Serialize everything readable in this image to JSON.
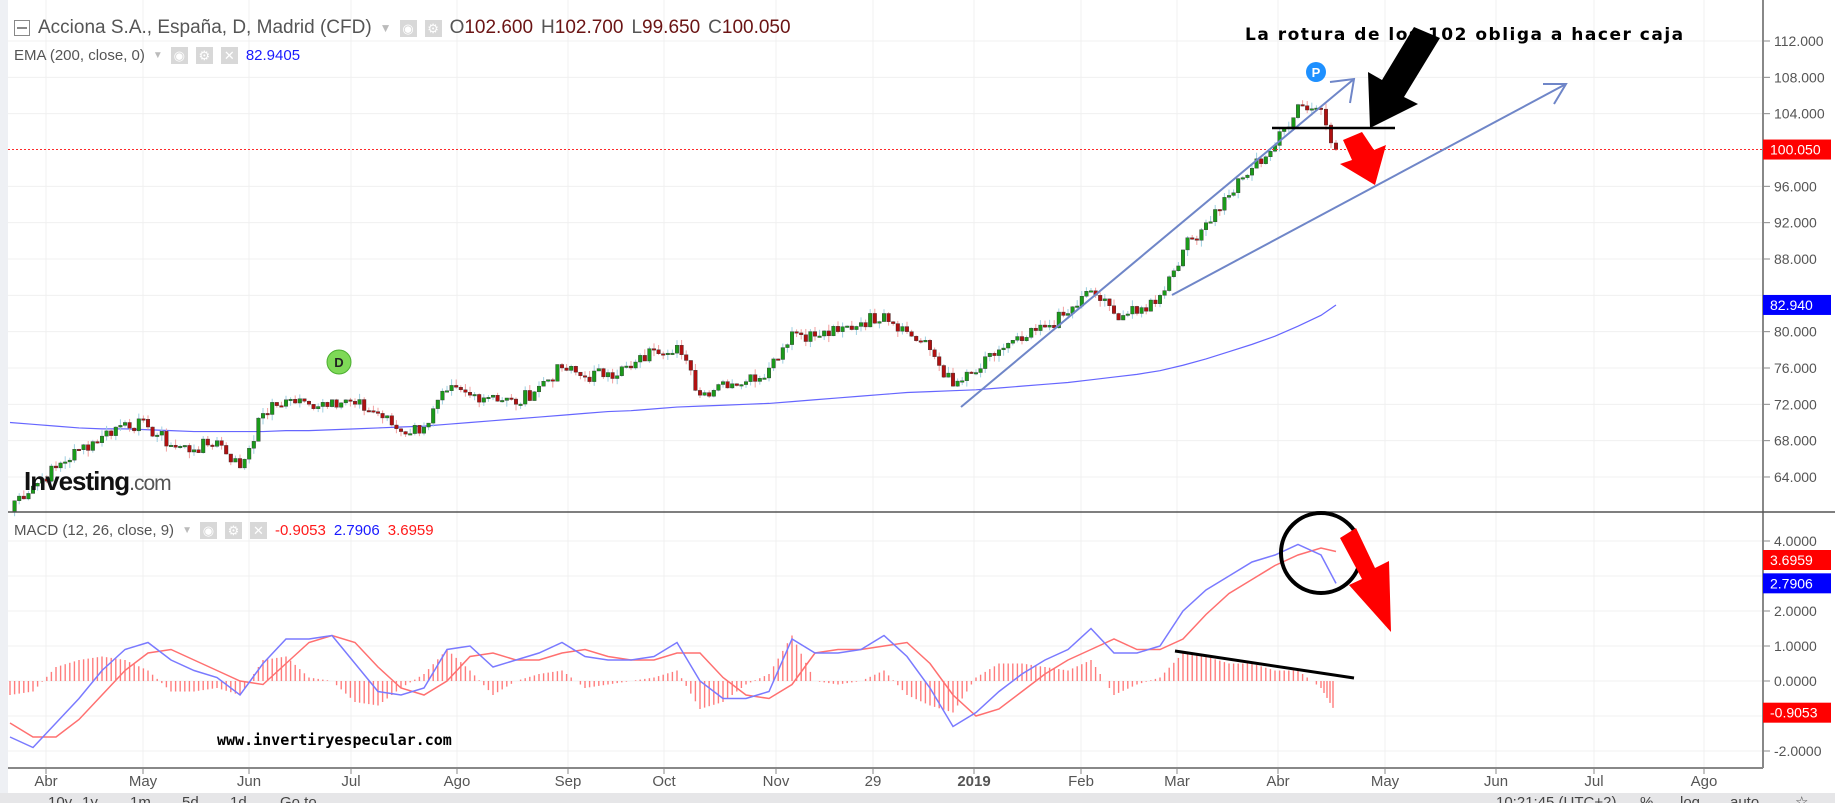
{
  "header": {
    "symbol_title": "Acciona S.A., España, D, Madrid (CFD)",
    "ohlc": {
      "o_label": "O",
      "o": "102.600",
      "h_label": "H",
      "h": "102.700",
      "l_label": "L",
      "l": "99.650",
      "c_label": "C",
      "c": "100.050"
    },
    "ema_label": "EMA (200, close, 0)",
    "ema_value": "82.9405",
    "macd_label": "MACD (12, 26, close, 9)",
    "macd_values": [
      "-0.9053",
      "2.7906",
      "3.6959"
    ]
  },
  "annotations": {
    "headline": "La rotura de los 102 obliga a hacer caja",
    "website": "www.invertiryespecular.com",
    "logo": "Investing.com",
    "marker_d": "D",
    "marker_p": "P"
  },
  "toolbar": {
    "ranges": [
      "10y",
      "1y",
      "1m",
      "5d",
      "1d",
      "Go to..."
    ],
    "time": "10:21:45 (UTC+2)",
    "percent": "%",
    "log": "log",
    "auto": "auto"
  },
  "colors": {
    "up": "#1a9a1a",
    "down": "#b01010",
    "ema": "#6666ff",
    "macd": "#7a7aff",
    "signal": "#ff7070",
    "hist": "#ff5c5c",
    "trend": "#6f86c8",
    "price_tag": "#ff0000",
    "ema_tag": "#0000ff"
  },
  "chart_data": {
    "type": "candlestick",
    "title": "Acciona S.A., España, D, Madrid (CFD)",
    "x_ticks": [
      "Abr",
      "May",
      "Jun",
      "Jul",
      "Ago",
      "Sep",
      "Oct",
      "Nov",
      "29",
      "2019",
      "Feb",
      "Mar",
      "Abr",
      "May",
      "Jun",
      "Jul",
      "Ago"
    ],
    "price_axis": {
      "ticks": [
        "112.000",
        "108.000",
        "104.000",
        "96.000",
        "92.000",
        "88.000",
        "80.000",
        "76.000",
        "72.000",
        "68.000",
        "64.000"
      ],
      "ylim": [
        60,
        114
      ],
      "last_price": 100.05,
      "last_price_label": "100.050",
      "ema_label": "82.940"
    },
    "weekly_closes": [
      61,
      63,
      65,
      67,
      68.5,
      70,
      69.5,
      67.5,
      67,
      68,
      65,
      71,
      72.5,
      72,
      72.5,
      72,
      71,
      69,
      69.5,
      73.5,
      73,
      73,
      72,
      74,
      76,
      75,
      75.5,
      76,
      78,
      78.5,
      73,
      74.5,
      74.5,
      76,
      80,
      79.5,
      80,
      81,
      82,
      80,
      78,
      74,
      75.5,
      78,
      79,
      80.5,
      82,
      84.5,
      82,
      82,
      84,
      89,
      92,
      95,
      98,
      100.5,
      105,
      104.5,
      100.05
    ],
    "ema200": [
      70,
      69.8,
      69.6,
      69.4,
      69.3,
      69.3,
      69.2,
      69.1,
      69.0,
      69.0,
      69.0,
      69.0,
      69.1,
      69.1,
      69.2,
      69.3,
      69.4,
      69.5,
      69.6,
      69.8,
      70.0,
      70.2,
      70.4,
      70.6,
      70.8,
      71.0,
      71.2,
      71.3,
      71.5,
      71.7,
      71.8,
      71.9,
      72.0,
      72.1,
      72.3,
      72.5,
      72.7,
      72.9,
      73.1,
      73.3,
      73.4,
      73.5,
      73.6,
      73.8,
      74.0,
      74.2,
      74.4,
      74.7,
      75.0,
      75.3,
      75.7,
      76.3,
      77.0,
      77.8,
      78.6,
      79.5,
      80.6,
      81.8,
      82.94
    ],
    "macd_axis": {
      "ticks": [
        "4.0000",
        "2.0000",
        "1.0000",
        "0.0000",
        "-2.0000"
      ],
      "ylim": [
        -2.4,
        4.3
      ],
      "tags": [
        "3.6959",
        "2.7906",
        "-0.9053"
      ]
    },
    "macd": [
      -1.6,
      -1.9,
      -1.2,
      -0.5,
      0.3,
      0.9,
      1.1,
      0.6,
      0.3,
      0.1,
      -0.4,
      0.5,
      1.2,
      1.2,
      1.3,
      0.5,
      -0.3,
      -0.4,
      -0.2,
      0.9,
      1.0,
      0.4,
      0.6,
      0.8,
      1.1,
      0.7,
      0.6,
      0.6,
      0.7,
      1.1,
      0.0,
      -0.5,
      -0.5,
      -0.3,
      1.2,
      0.8,
      0.8,
      0.9,
      1.3,
      0.7,
      -0.2,
      -1.3,
      -0.9,
      -0.3,
      0.2,
      0.6,
      0.9,
      1.5,
      0.8,
      0.8,
      1.0,
      2.0,
      2.6,
      3.0,
      3.4,
      3.6,
      3.9,
      3.6,
      2.79
    ],
    "signal": [
      -1.2,
      -1.6,
      -1.6,
      -1.1,
      -0.4,
      0.3,
      0.8,
      0.9,
      0.6,
      0.3,
      0.0,
      -0.1,
      0.5,
      1.1,
      1.3,
      1.1,
      0.4,
      -0.2,
      -0.4,
      0.0,
      0.7,
      0.8,
      0.6,
      0.6,
      0.8,
      0.9,
      0.7,
      0.6,
      0.6,
      0.8,
      0.8,
      0.1,
      -0.4,
      -0.5,
      -0.1,
      0.8,
      0.9,
      0.9,
      1.0,
      1.1,
      0.5,
      -0.4,
      -1.0,
      -0.8,
      -0.3,
      0.2,
      0.6,
      0.9,
      1.2,
      0.9,
      0.9,
      1.2,
      1.9,
      2.5,
      2.9,
      3.3,
      3.6,
      3.8,
      3.7
    ]
  }
}
